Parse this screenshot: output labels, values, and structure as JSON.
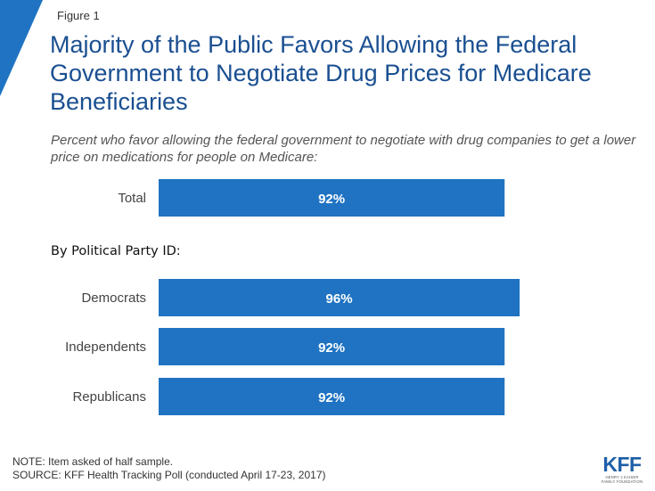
{
  "figure_label": "Figure 1",
  "chart_data": {
    "type": "bar",
    "orientation": "horizontal",
    "title": "Majority of the Public Favors Allowing the Federal Government to Negotiate Drug Prices for Medicare Beneficiaries",
    "subtitle": "Percent who favor allowing the federal government to negotiate with drug companies to get a lower price on medications for people on Medicare:",
    "group_label": "By Political Party ID:",
    "categories": [
      "Total",
      "Democrats",
      "Independents",
      "Republicans"
    ],
    "values": [
      92,
      96,
      92,
      92
    ],
    "value_labels": [
      "92%",
      "96%",
      "92%",
      "92%"
    ],
    "xlim": [
      0,
      100
    ],
    "bar_color": "#1f73c2",
    "grid": false,
    "legend": "none"
  },
  "notes": {
    "note": "NOTE: Item asked of half sample.",
    "source": "SOURCE: KFF Health Tracking Poll (conducted April 17-23, 2017)"
  },
  "logo": {
    "main": "KFF",
    "sub1": "HENRY J KAISER",
    "sub2": "FAMILY FOUNDATION"
  },
  "colors": {
    "accent": "#1f73c2",
    "title": "#1a4f91"
  }
}
